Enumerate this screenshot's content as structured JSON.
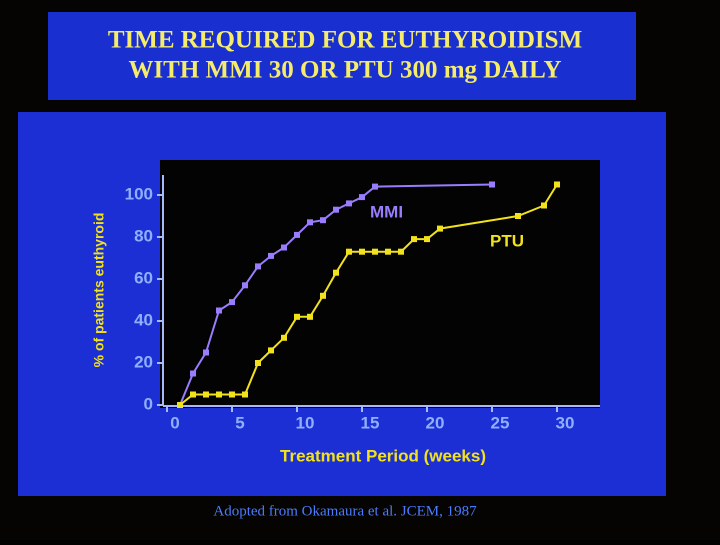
{
  "chart_data": {
    "type": "line",
    "title": [
      "TIME REQUIRED FOR EUTHYROIDISM",
      "WITH MMI 30 OR PTU 300 mg DAILY"
    ],
    "x_label": "Treatment Period (weeks)",
    "y_label": "% of patients euthyroid",
    "source": "Adopted from Okamaura et al. JCEM, 1987",
    "xlim": [
      0,
      33
    ],
    "xticks": [
      0,
      5,
      10,
      15,
      20,
      25,
      30
    ],
    "ylim": [
      0,
      110
    ],
    "yticks": [
      0,
      20,
      40,
      60,
      80,
      100
    ],
    "series": [
      {
        "name": "MMI",
        "color": "#9a7cff",
        "x": [
          1,
          2,
          3,
          4,
          5,
          6,
          7,
          8,
          9,
          10,
          11,
          12,
          13,
          14,
          15,
          16,
          25
        ],
        "values": [
          0,
          15,
          25,
          45,
          49,
          57,
          66,
          71,
          75,
          81,
          87,
          88,
          93,
          96,
          99,
          104,
          105
        ]
      },
      {
        "name": "PTU",
        "color": "#f2e21c",
        "x": [
          1,
          2,
          3,
          4,
          5,
          6,
          7,
          8,
          9,
          10,
          11,
          12,
          13,
          14,
          15,
          16,
          17,
          18,
          19,
          20,
          21,
          27,
          29,
          30
        ],
        "values": [
          0,
          5,
          5,
          5,
          5,
          5,
          20,
          26,
          32,
          42,
          42,
          52,
          63,
          73,
          73,
          73,
          73,
          73,
          79,
          79,
          84,
          90,
          95,
          105
        ]
      }
    ]
  }
}
